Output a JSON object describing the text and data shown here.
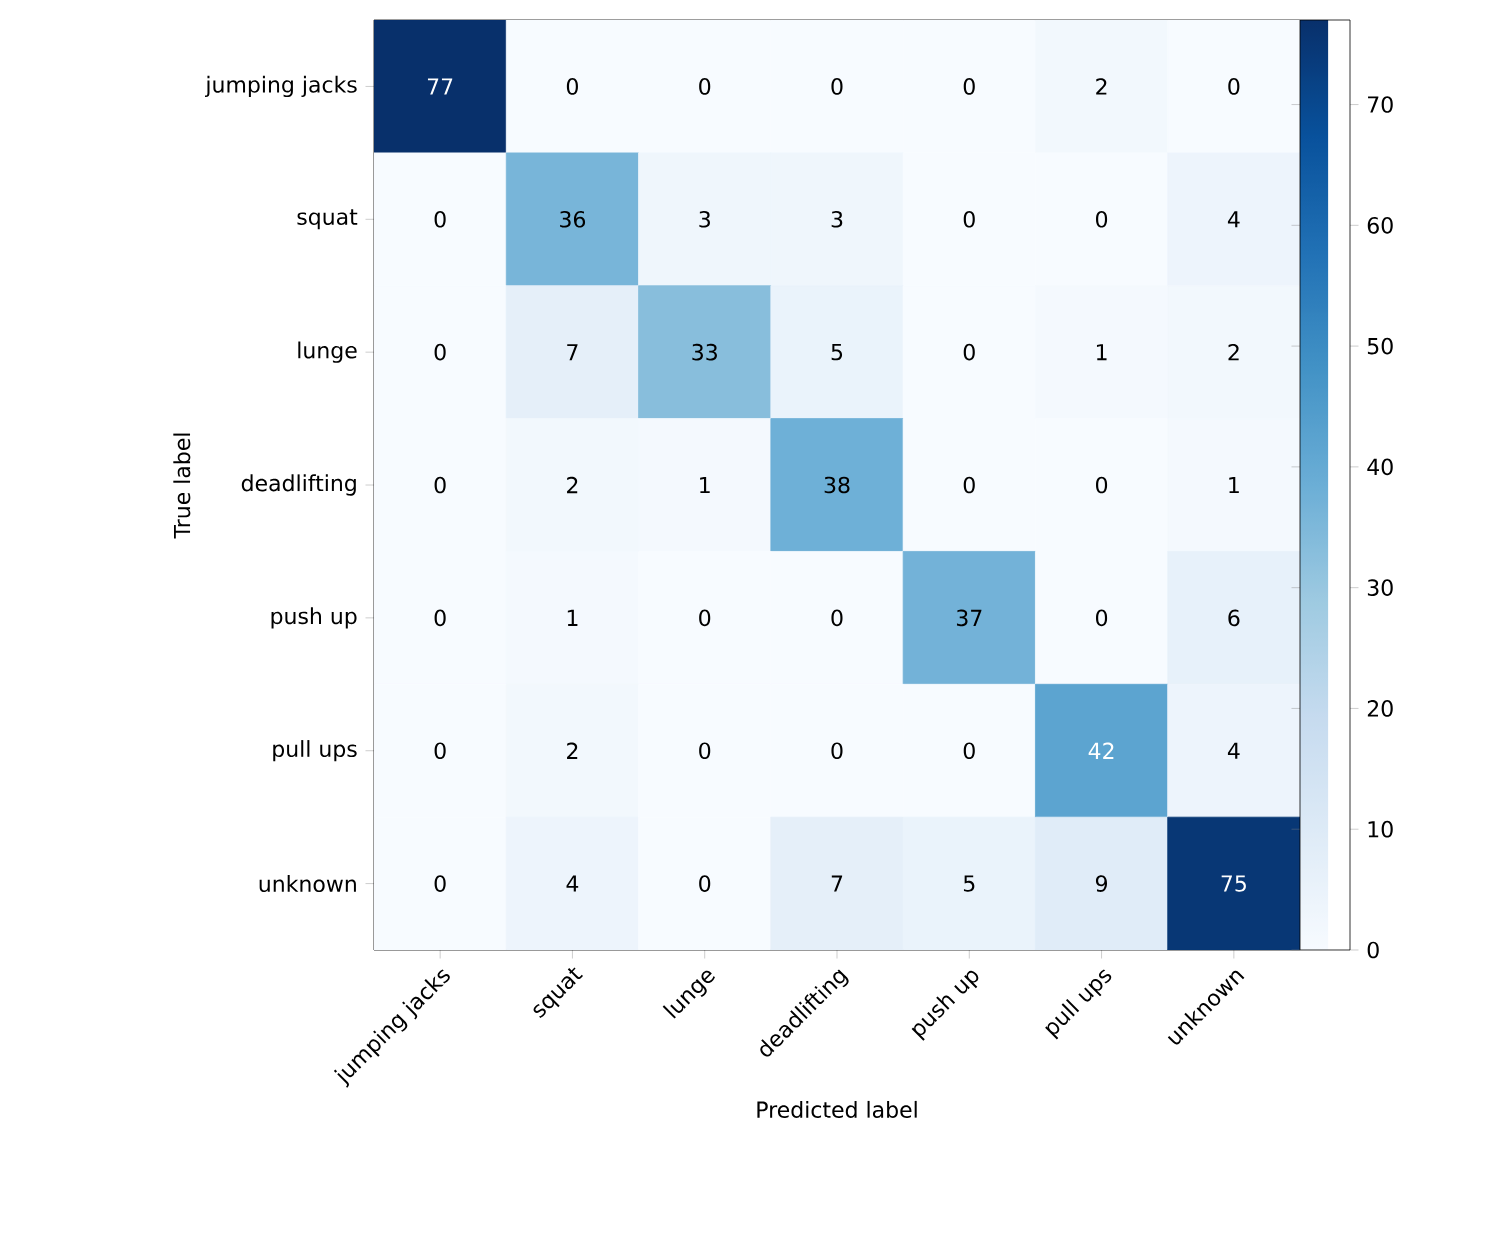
{
  "chart_data": {
    "type": "heatmap",
    "xlabel": "Predicted label",
    "ylabel": "True label",
    "categories": [
      "jumping jacks",
      "squat",
      "lunge",
      "deadlifting",
      "push up",
      "pull ups",
      "unknown"
    ],
    "y_categories": [
      "jumping jacks",
      "squat",
      "lunge",
      "deadlifting",
      "push up",
      "pull ups",
      "unknown"
    ],
    "cells": [
      [
        77,
        0,
        0,
        0,
        0,
        2,
        0
      ],
      [
        0,
        36,
        3,
        3,
        0,
        0,
        4
      ],
      [
        0,
        7,
        33,
        5,
        0,
        1,
        2
      ],
      [
        0,
        2,
        1,
        38,
        0,
        0,
        1
      ],
      [
        0,
        1,
        0,
        0,
        37,
        0,
        6
      ],
      [
        0,
        2,
        0,
        0,
        0,
        42,
        4
      ],
      [
        0,
        4,
        0,
        7,
        5,
        9,
        75
      ]
    ],
    "data_labels": true,
    "clim": [
      0,
      77
    ],
    "cticks": [
      0,
      10,
      20,
      30,
      40,
      50,
      60,
      70
    ]
  }
}
